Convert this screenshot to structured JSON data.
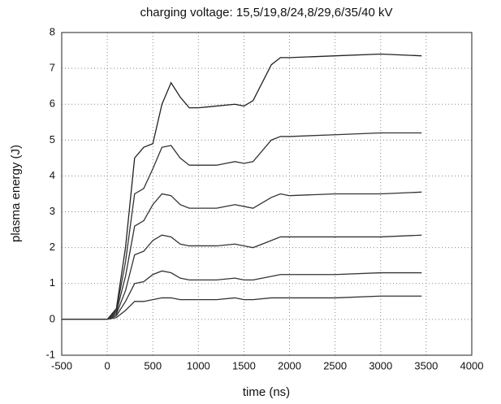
{
  "chart_data": {
    "type": "line",
    "title": "charging voltage: 15,5/19,8/24,8/29,6/35/40 kV",
    "x_label": "time (ns)",
    "y_label": "plasma energy (J)",
    "x": [
      -500,
      0,
      100,
      200,
      300,
      400,
      500,
      600,
      700,
      800,
      900,
      1000,
      1200,
      1400,
      1500,
      1600,
      1800,
      1900,
      2000,
      2500,
      3000,
      3450
    ],
    "series": [
      {
        "color": "#222222",
        "values": [
          0,
          0,
          0.3,
          2.0,
          4.5,
          4.8,
          4.9,
          6.0,
          6.6,
          6.2,
          5.9,
          5.9,
          5.95,
          6.0,
          5.95,
          6.1,
          7.1,
          7.3,
          7.3,
          7.35,
          7.4,
          7.35
        ]
      },
      {
        "color": "#333333",
        "values": [
          0,
          0,
          0.25,
          1.6,
          3.5,
          3.65,
          4.2,
          4.8,
          4.85,
          4.5,
          4.3,
          4.3,
          4.3,
          4.4,
          4.35,
          4.4,
          5.0,
          5.1,
          5.1,
          5.15,
          5.2,
          5.2
        ]
      },
      {
        "color": "#333333",
        "values": [
          0,
          0,
          0.2,
          1.2,
          2.6,
          2.75,
          3.2,
          3.5,
          3.45,
          3.2,
          3.1,
          3.1,
          3.1,
          3.2,
          3.15,
          3.1,
          3.4,
          3.5,
          3.45,
          3.5,
          3.5,
          3.55
        ]
      },
      {
        "color": "#333333",
        "values": [
          0,
          0,
          0.15,
          0.8,
          1.8,
          1.9,
          2.2,
          2.35,
          2.3,
          2.1,
          2.05,
          2.05,
          2.05,
          2.1,
          2.05,
          2.0,
          2.2,
          2.3,
          2.3,
          2.3,
          2.3,
          2.35
        ]
      },
      {
        "color": "#333333",
        "values": [
          0,
          0,
          0.1,
          0.5,
          1.0,
          1.05,
          1.25,
          1.35,
          1.3,
          1.15,
          1.1,
          1.1,
          1.1,
          1.15,
          1.1,
          1.1,
          1.2,
          1.25,
          1.25,
          1.25,
          1.3,
          1.3
        ]
      },
      {
        "color": "#333333",
        "values": [
          0,
          0,
          0.05,
          0.25,
          0.5,
          0.5,
          0.55,
          0.6,
          0.6,
          0.55,
          0.55,
          0.55,
          0.55,
          0.6,
          0.55,
          0.55,
          0.6,
          0.6,
          0.6,
          0.6,
          0.65,
          0.65
        ]
      }
    ],
    "xlim": [
      -500,
      4000
    ],
    "xticks": [
      -500,
      0,
      500,
      1000,
      1500,
      2000,
      2500,
      3000,
      3500,
      4000
    ],
    "ylim": [
      -1,
      8
    ],
    "yticks": [
      -1,
      0,
      1,
      2,
      3,
      4,
      5,
      6,
      7,
      8
    ],
    "grid": true
  }
}
